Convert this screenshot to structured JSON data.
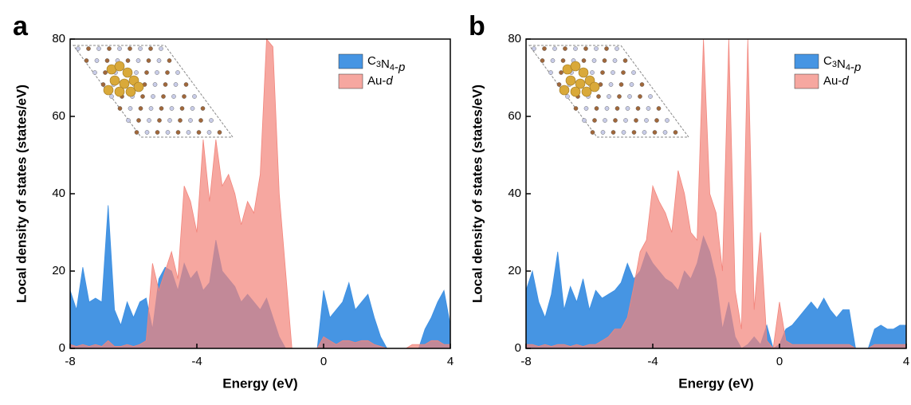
{
  "chart_data": [
    {
      "type": "area",
      "panel_label": "a",
      "xlabel": "Energy (eV)",
      "ylabel": "Local density of states (states/eV)",
      "xlim": [
        -8,
        4
      ],
      "ylim": [
        0,
        80
      ],
      "xticks": [
        -8,
        -4,
        0,
        4
      ],
      "yticks": [
        0,
        20,
        40,
        60,
        80
      ],
      "legend": "upper right",
      "x": [
        -8,
        -7.8,
        -7.6,
        -7.4,
        -7.2,
        -7,
        -6.8,
        -6.6,
        -6.4,
        -6.2,
        -6,
        -5.8,
        -5.6,
        -5.4,
        -5.2,
        -5,
        -4.8,
        -4.6,
        -4.4,
        -4.2,
        -4,
        -3.8,
        -3.6,
        -3.4,
        -3.2,
        -3,
        -2.8,
        -2.6,
        -2.4,
        -2.2,
        -2,
        -1.8,
        -1.6,
        -1.4,
        -1.2,
        -1,
        -0.8,
        -0.6,
        -0.4,
        -0.2,
        0,
        0.2,
        0.4,
        0.6,
        0.8,
        1,
        1.2,
        1.4,
        1.6,
        1.8,
        2,
        2.2,
        2.4,
        2.6,
        2.8,
        3,
        3.2,
        3.4,
        3.6,
        3.8,
        4
      ],
      "series": [
        {
          "name": "C3N4-p",
          "color": "#3c8fe2",
          "values": [
            15,
            10,
            21,
            12,
            13,
            12,
            37,
            10,
            6,
            12,
            8,
            12,
            13,
            5,
            18,
            21,
            20,
            15,
            22,
            18,
            20,
            15,
            17,
            28,
            20,
            18,
            16,
            12,
            14,
            12,
            10,
            13,
            8,
            3,
            0,
            0,
            0,
            0,
            0,
            0,
            15,
            8,
            10,
            12,
            17,
            10,
            12,
            14,
            8,
            3,
            0,
            0,
            0,
            0,
            0,
            0,
            5,
            8,
            12,
            15,
            6
          ]
        },
        {
          "name": "Au-d",
          "color": "#f2857c",
          "values": [
            1,
            0.5,
            1,
            0.5,
            1,
            0.5,
            2,
            0.5,
            0.5,
            1,
            0.5,
            1,
            2,
            22,
            15,
            20,
            25,
            18,
            42,
            38,
            30,
            54,
            38,
            54,
            42,
            45,
            40,
            32,
            38,
            35,
            45,
            80,
            78,
            40,
            20,
            0,
            0,
            0,
            0,
            0,
            3,
            2,
            1,
            2,
            2,
            1.5,
            2,
            2,
            1,
            0.5,
            0,
            0,
            0,
            0,
            1,
            1,
            1,
            2,
            2,
            1,
            1
          ]
        }
      ]
    },
    {
      "type": "area",
      "panel_label": "b",
      "xlabel": "Energy (eV)",
      "ylabel": "Local density of states (states/eV)",
      "xlim": [
        -8,
        4
      ],
      "ylim": [
        0,
        80
      ],
      "xticks": [
        -8,
        -4,
        0,
        4
      ],
      "yticks": [
        0,
        20,
        40,
        60,
        80
      ],
      "legend": "upper right",
      "x": [
        -8,
        -7.8,
        -7.6,
        -7.4,
        -7.2,
        -7,
        -6.8,
        -6.6,
        -6.4,
        -6.2,
        -6,
        -5.8,
        -5.6,
        -5.4,
        -5.2,
        -5,
        -4.8,
        -4.6,
        -4.4,
        -4.2,
        -4,
        -3.8,
        -3.6,
        -3.4,
        -3.2,
        -3,
        -2.8,
        -2.6,
        -2.4,
        -2.2,
        -2,
        -1.8,
        -1.6,
        -1.4,
        -1.2,
        -1,
        -0.8,
        -0.6,
        -0.4,
        -0.2,
        0,
        0.2,
        0.4,
        0.6,
        0.8,
        1,
        1.2,
        1.4,
        1.6,
        1.8,
        2,
        2.2,
        2.4,
        2.6,
        2.8,
        3,
        3.2,
        3.4,
        3.6,
        3.8,
        4
      ],
      "series": [
        {
          "name": "C3N4-p",
          "color": "#3c8fe2",
          "values": [
            15,
            20,
            12,
            8,
            14,
            25,
            10,
            16,
            12,
            18,
            10,
            15,
            13,
            14,
            15,
            17,
            22,
            18,
            20,
            25,
            22,
            20,
            18,
            17,
            15,
            20,
            18,
            22,
            29,
            25,
            18,
            5,
            12,
            3,
            0,
            1,
            3,
            1,
            6,
            0,
            1,
            5,
            6,
            8,
            10,
            12,
            10,
            13,
            10,
            8,
            10,
            10,
            0,
            0,
            0,
            5,
            6,
            5,
            5,
            6,
            6
          ]
        },
        {
          "name": "Au-d",
          "color": "#f2857c",
          "values": [
            1,
            1,
            0.5,
            1,
            0.5,
            1,
            1,
            0.5,
            1,
            0.5,
            1,
            1,
            2,
            3,
            5,
            5,
            8,
            16,
            25,
            28,
            42,
            38,
            35,
            30,
            46,
            40,
            30,
            28,
            80,
            40,
            35,
            20,
            80,
            15,
            5,
            80,
            10,
            30,
            2,
            0,
            12,
            2,
            1,
            1,
            1,
            1,
            1,
            1,
            1,
            1,
            1,
            1,
            0,
            0,
            0,
            1,
            1,
            1,
            1,
            1,
            1
          ]
        }
      ]
    }
  ]
}
